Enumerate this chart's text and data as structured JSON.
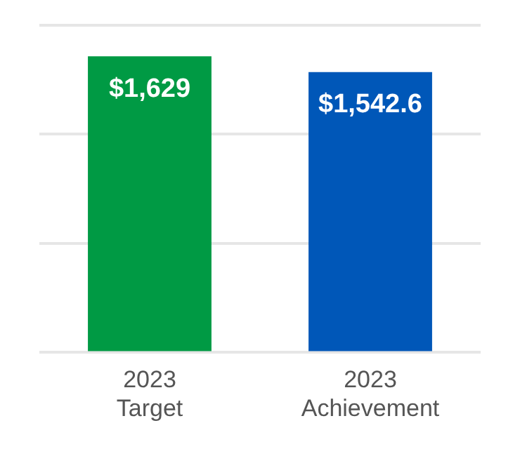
{
  "chart_data": {
    "type": "bar",
    "categories": [
      "2023 Target",
      "2023 Achievement"
    ],
    "values": [
      1629,
      1542.6
    ],
    "colors": [
      "#009a44",
      "#0057b8"
    ],
    "value_labels": [
      "$1,629",
      "$1,542.6"
    ],
    "ylim": [
      0,
      1800
    ],
    "yticks": [
      {
        "value": 0,
        "label": null
      },
      {
        "value": 600,
        "label": null
      },
      {
        "value": 1200,
        "label": null
      },
      {
        "value": 1800,
        "label": null
      }
    ],
    "tick_labels": "x",
    "grid": "y",
    "legend": false
  }
}
